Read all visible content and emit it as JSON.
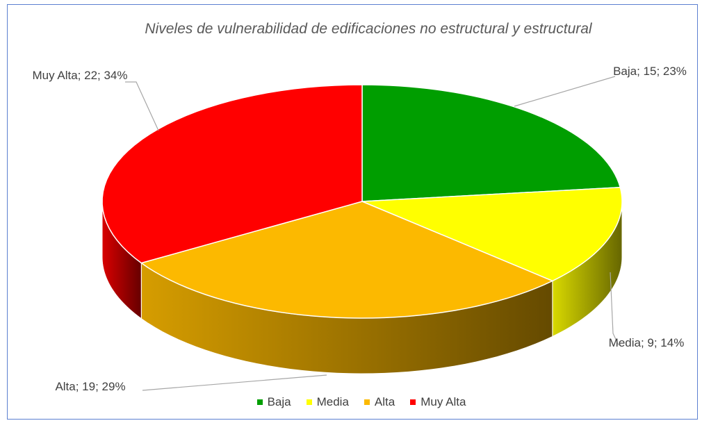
{
  "chart_data": {
    "type": "pie3d",
    "title": "Niveles de vulnerabilidad de edificaciones no estructural y estructural",
    "categories": [
      "Baja",
      "Media",
      "Alta",
      "Muy Alta"
    ],
    "values": [
      15,
      9,
      19,
      22
    ],
    "value_labels": [
      "Baja; 15; 23%",
      "Media; 9; 14%",
      "Alta; 19; 29%",
      "Muy Alta; 22; 34%"
    ],
    "colors": [
      "#009e00",
      "#ffff00",
      "#fcb900",
      "#ff0000"
    ],
    "legend": "bottom"
  }
}
